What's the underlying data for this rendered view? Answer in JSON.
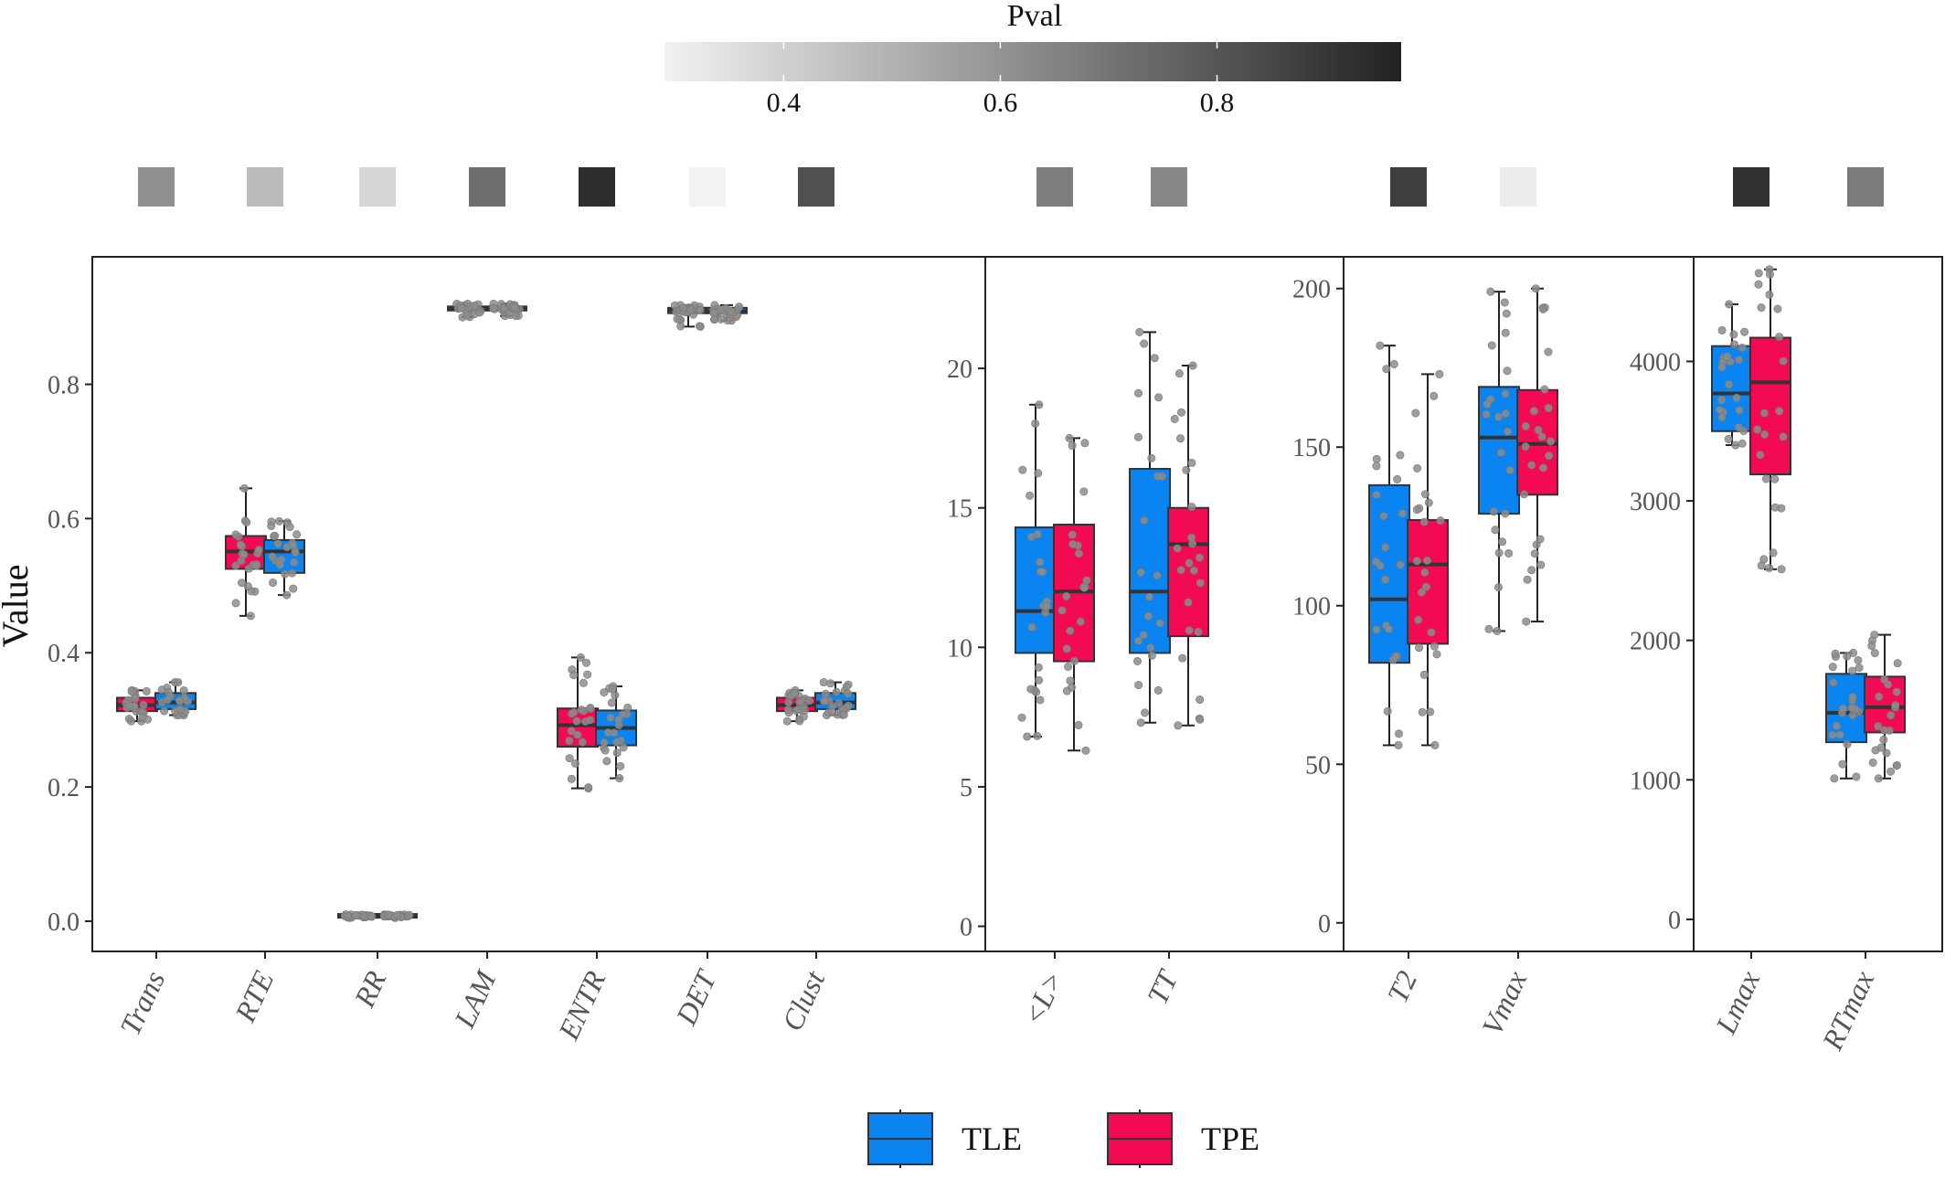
{
  "colors": {
    "TLE": "#0a84f0",
    "TPE": "#f20a52",
    "median": "#333333",
    "jitter_point": "#8c8c8c",
    "panel_border": "#222222"
  },
  "legend": {
    "entries": [
      {
        "name": "TLE",
        "color": "#0a84f0"
      },
      {
        "name": "TPE",
        "color": "#f20a52"
      }
    ]
  },
  "pval_scale": {
    "title": "Pval",
    "ticks": [
      {
        "value": 0.4,
        "label": "0.4"
      },
      {
        "value": 0.6,
        "label": "0.6"
      },
      {
        "value": 0.8,
        "label": "0.8"
      }
    ],
    "min": 0.29,
    "max": 0.97,
    "color_low": "#f2f2f2",
    "color_high": "#222222"
  },
  "chart_data": {
    "type": "box",
    "ylabel": "Value",
    "groups": [
      "TLE",
      "TPE"
    ],
    "panels": [
      {
        "name": "panel-1",
        "ylim": [
          -0.045,
          0.99
        ],
        "yticks": [
          {
            "value": 0.0,
            "label": "0.0"
          },
          {
            "value": 0.2,
            "label": "0.2"
          },
          {
            "value": 0.4,
            "label": "0.4"
          },
          {
            "value": 0.6,
            "label": "0.6"
          },
          {
            "value": 0.8,
            "label": "0.8"
          }
        ],
        "variables": [
          {
            "name": "Trans",
            "pval": 0.61,
            "first": "TPE",
            "boxes": {
              "TPE": {
                "min": 0.298,
                "q1": 0.313,
                "median": 0.322,
                "q3": 0.333,
                "max": 0.344
              },
              "TLE": {
                "min": 0.307,
                "q1": 0.316,
                "median": 0.326,
                "q3": 0.34,
                "max": 0.356
              }
            }
          },
          {
            "name": "RTE",
            "pval": 0.47,
            "first": "TPE",
            "boxes": {
              "TPE": {
                "min": 0.455,
                "q1": 0.525,
                "median": 0.551,
                "q3": 0.574,
                "max": 0.645
              },
              "TLE": {
                "min": 0.486,
                "q1": 0.519,
                "median": 0.551,
                "q3": 0.568,
                "max": 0.596
              }
            }
          },
          {
            "name": "RR",
            "pval": 0.38,
            "first": "TPE",
            "boxes": {
              "TPE": {
                "min": 0.005,
                "q1": 0.007,
                "median": 0.008,
                "q3": 0.009,
                "max": 0.01
              },
              "TLE": {
                "min": 0.005,
                "q1": 0.007,
                "median": 0.008,
                "q3": 0.009,
                "max": 0.01
              }
            }
          },
          {
            "name": "LAM",
            "pval": 0.72,
            "first": "TPE",
            "boxes": {
              "TPE": {
                "min": 0.9,
                "q1": 0.91,
                "median": 0.913,
                "q3": 0.916,
                "max": 0.92
              },
              "TLE": {
                "min": 0.902,
                "q1": 0.91,
                "median": 0.913,
                "q3": 0.916,
                "max": 0.92
              }
            }
          },
          {
            "name": "ENTR",
            "pval": 0.93,
            "first": "TPE",
            "boxes": {
              "TPE": {
                "min": 0.198,
                "q1": 0.26,
                "median": 0.292,
                "q3": 0.317,
                "max": 0.393
              },
              "TLE": {
                "min": 0.213,
                "q1": 0.262,
                "median": 0.288,
                "q3": 0.314,
                "max": 0.35
              }
            }
          },
          {
            "name": "DET",
            "pval": 0.29,
            "first": "TPE",
            "boxes": {
              "TPE": {
                "min": 0.886,
                "q1": 0.906,
                "median": 0.911,
                "q3": 0.914,
                "max": 0.918
              },
              "TLE": {
                "min": 0.895,
                "q1": 0.906,
                "median": 0.909,
                "q3": 0.914,
                "max": 0.918
              }
            }
          },
          {
            "name": "Clust",
            "pval": 0.82,
            "first": "TPE",
            "boxes": {
              "TPE": {
                "min": 0.298,
                "q1": 0.313,
                "median": 0.322,
                "q3": 0.333,
                "max": 0.344
              },
              "TLE": {
                "min": 0.307,
                "q1": 0.316,
                "median": 0.326,
                "q3": 0.34,
                "max": 0.356
              }
            }
          }
        ]
      },
      {
        "name": "panel-2",
        "ylim": [
          -0.9,
          24.0
        ],
        "yticks": [
          {
            "value": 0,
            "label": "0"
          },
          {
            "value": 5,
            "label": "5"
          },
          {
            "value": 10,
            "label": "10"
          },
          {
            "value": 15,
            "label": "15"
          },
          {
            "value": 20,
            "label": "20"
          }
        ],
        "variables": [
          {
            "name": "<L>",
            "pval": 0.67,
            "first": "TLE",
            "boxes": {
              "TLE": {
                "min": 6.8,
                "q1": 9.8,
                "median": 11.3,
                "q3": 14.3,
                "max": 18.7
              },
              "TPE": {
                "min": 6.3,
                "q1": 9.5,
                "median": 12.0,
                "q3": 14.4,
                "max": 17.5
              }
            }
          },
          {
            "name": "TT",
            "pval": 0.64,
            "first": "TLE",
            "boxes": {
              "TLE": {
                "min": 7.3,
                "q1": 9.8,
                "median": 12.0,
                "q3": 16.4,
                "max": 21.3
              },
              "TPE": {
                "min": 7.2,
                "q1": 10.4,
                "median": 13.7,
                "q3": 15.0,
                "max": 20.1
              }
            }
          }
        ]
      },
      {
        "name": "panel-3",
        "ylim": [
          -9,
          210
        ],
        "yticks": [
          {
            "value": 0,
            "label": "0"
          },
          {
            "value": 50,
            "label": "50"
          },
          {
            "value": 100,
            "label": "100"
          },
          {
            "value": 150,
            "label": "150"
          },
          {
            "value": 200,
            "label": "200"
          }
        ],
        "variables": [
          {
            "name": "T2",
            "pval": 0.88,
            "first": "TLE",
            "boxes": {
              "TLE": {
                "min": 56,
                "q1": 82,
                "median": 102,
                "q3": 138,
                "max": 182
              },
              "TPE": {
                "min": 56,
                "q1": 88,
                "median": 113,
                "q3": 127,
                "max": 173
              }
            }
          },
          {
            "name": "Vmax",
            "pval": 0.31,
            "first": "TLE",
            "boxes": {
              "TLE": {
                "min": 92,
                "q1": 129,
                "median": 153,
                "q3": 169,
                "max": 199
              },
              "TPE": {
                "min": 95,
                "q1": 135,
                "median": 151,
                "q3": 168,
                "max": 200
              }
            }
          }
        ]
      },
      {
        "name": "panel-4",
        "ylim": [
          -230,
          4750
        ],
        "yticks": [
          {
            "value": 0,
            "label": "0"
          },
          {
            "value": 1000,
            "label": "1000"
          },
          {
            "value": 2000,
            "label": "2000"
          },
          {
            "value": 3000,
            "label": "3000"
          },
          {
            "value": 4000,
            "label": "4000"
          }
        ],
        "variables": [
          {
            "name": "Lmax",
            "pval": 0.92,
            "first": "TLE",
            "boxes": {
              "TLE": {
                "min": 3400,
                "q1": 3500,
                "median": 3770,
                "q3": 4110,
                "max": 4410
              },
              "TPE": {
                "min": 2510,
                "q1": 3190,
                "median": 3850,
                "q3": 4170,
                "max": 4660
              }
            }
          },
          {
            "name": "RTmax",
            "pval": 0.68,
            "first": "TLE",
            "boxes": {
              "TLE": {
                "min": 1010,
                "q1": 1270,
                "median": 1480,
                "q3": 1760,
                "max": 1910
              },
              "TPE": {
                "min": 1010,
                "q1": 1340,
                "median": 1520,
                "q3": 1740,
                "max": 2040
              }
            }
          }
        ]
      }
    ]
  }
}
